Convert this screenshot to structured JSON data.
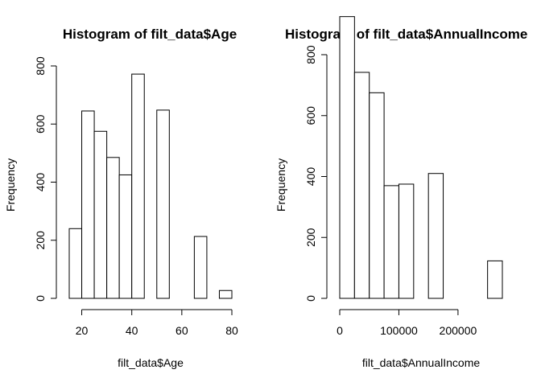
{
  "chart_data": [
    {
      "type": "bar",
      "title": "Histogram of filt_data$Age",
      "xlabel": "filt_data$Age",
      "ylabel": "Frequency",
      "bin_edges": [
        15,
        20,
        25,
        30,
        35,
        40,
        45,
        50,
        55,
        60,
        65,
        70,
        75,
        80
      ],
      "values": [
        240,
        645,
        575,
        485,
        425,
        772,
        0,
        648,
        0,
        0,
        213,
        0,
        27
      ],
      "xlim": [
        15,
        80
      ],
      "ylim": [
        0,
        800
      ],
      "xticks": [
        20,
        40,
        60,
        80
      ],
      "xtick_labels": [
        "20",
        "40",
        "60",
        "80"
      ],
      "yticks": [
        0,
        200,
        400,
        600,
        800
      ],
      "ytick_labels": [
        "0",
        "200",
        "400",
        "600",
        "800"
      ],
      "grid": false
    },
    {
      "type": "bar",
      "title": "Histogram of filt_data$AnnualIncome",
      "xlabel": "filt_data$AnnualIncome",
      "ylabel": "Frequency",
      "bin_edges": [
        0,
        25000,
        50000,
        75000,
        100000,
        125000,
        150000,
        175000,
        200000,
        225000,
        250000,
        275000
      ],
      "values": [
        925,
        742,
        675,
        370,
        375,
        0,
        410,
        0,
        0,
        0,
        123
      ],
      "xlim": [
        0,
        260000
      ],
      "ylim": [
        0,
        800
      ],
      "xticks": [
        0,
        100000,
        200000
      ],
      "xtick_labels": [
        "0",
        "100000",
        "200000"
      ],
      "yticks": [
        0,
        200,
        400,
        600,
        800
      ],
      "ytick_labels": [
        "0",
        "200",
        "400",
        "600",
        "800"
      ],
      "grid": false
    }
  ]
}
